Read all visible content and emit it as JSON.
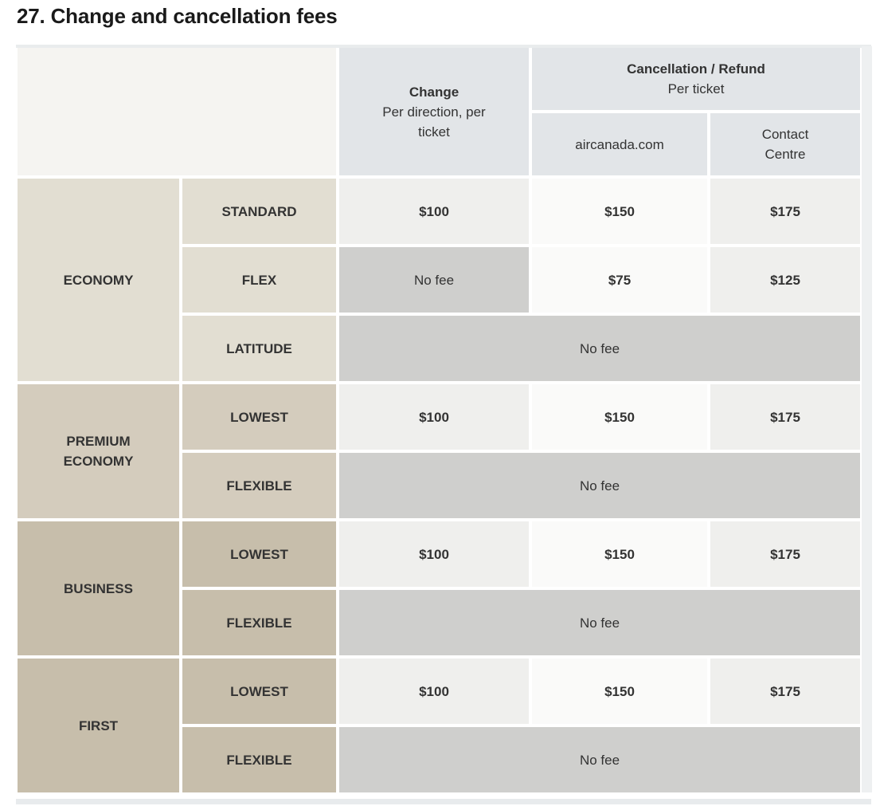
{
  "page": {
    "title": "27. Change and cancellation fees"
  },
  "table": {
    "header": {
      "change_title": "Change",
      "change_subtitle": "Per direction, per ticket",
      "cancellation_title": "Cancellation / Refund",
      "cancellation_subtitle": "Per ticket",
      "web_column": "aircanada.com",
      "contact_column": "Contact Centre"
    },
    "sections": [
      {
        "cabin": "ECONOMY",
        "rows": [
          {
            "fare": "STANDARD",
            "change": "$100",
            "web": "$150",
            "contact": "$175"
          },
          {
            "fare": "FLEX",
            "change": "No fee",
            "web": "$75",
            "contact": "$125"
          },
          {
            "fare": "LATITUDE",
            "all_columns": "No fee"
          }
        ]
      },
      {
        "cabin": "PREMIUM ECONOMY",
        "rows": [
          {
            "fare": "LOWEST",
            "change": "$100",
            "web": "$150",
            "contact": "$175"
          },
          {
            "fare": "FLEXIBLE",
            "all_columns": "No fee"
          }
        ]
      },
      {
        "cabin": "BUSINESS",
        "rows": [
          {
            "fare": "LOWEST",
            "change": "$100",
            "web": "$150",
            "contact": "$175"
          },
          {
            "fare": "FLEXIBLE",
            "all_columns": "No fee"
          }
        ]
      },
      {
        "cabin": "FIRST",
        "rows": [
          {
            "fare": "LOWEST",
            "change": "$100",
            "web": "$150",
            "contact": "$175"
          },
          {
            "fare": "FLEXIBLE",
            "all_columns": "No fee"
          }
        ]
      }
    ]
  },
  "colors": {
    "header_bg": "#e2e5e8",
    "corner_bg": "#f5f4f1",
    "economy_bg": "#e2ded2",
    "premium_economy_bg": "#d4ccbd",
    "business_bg": "#c7beab",
    "first_bg": "#c7beab",
    "change_cell_bg": "#efefed",
    "web_cell_bg": "#fafaf9",
    "contact_cell_bg": "#efefed",
    "no_fee_bg": "#cfcfcd",
    "text": "#333333"
  }
}
